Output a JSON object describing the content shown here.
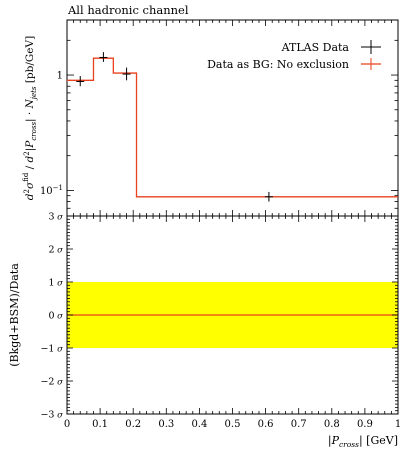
{
  "chart_data": [
    {
      "type": "line",
      "title": "All hadronic channel",
      "xlabel": "|P_cross| [GeV]",
      "ylabel": "d²σ^fid / d²|P_cross|·N_jets [pb/GeV]",
      "yscale": "log",
      "xlim": [
        0,
        1
      ],
      "ylim": [
        0.06,
        3.0
      ],
      "y_ticks": [
        {
          "v": 1,
          "label": "1"
        },
        {
          "v": 0.1,
          "label": "10^{-1}"
        }
      ],
      "legend_position": "top-right",
      "series": [
        {
          "name": "ATLAS Data",
          "style": "points-with-errors",
          "color": "#000000",
          "points": [
            {
              "x": 0.04,
              "y": 0.88,
              "lo": 0.8,
              "hi": 0.98
            },
            {
              "x": 0.11,
              "y": 1.42,
              "lo": 1.3,
              "hi": 1.58
            },
            {
              "x": 0.18,
              "y": 1.02,
              "lo": 0.9,
              "hi": 1.16
            },
            {
              "x": 0.61,
              "y": 0.088,
              "lo": 0.08,
              "hi": 0.097
            }
          ]
        },
        {
          "name": "Data as BG: No exclusion",
          "style": "step",
          "color": "#e8411e",
          "bins": [
            {
              "lo": 0.0,
              "hi": 0.08,
              "y": 0.9
            },
            {
              "lo": 0.08,
              "hi": 0.14,
              "y": 1.4
            },
            {
              "lo": 0.14,
              "hi": 0.21,
              "y": 1.04
            },
            {
              "lo": 0.21,
              "hi": 1.0,
              "y": 0.088
            }
          ]
        }
      ]
    },
    {
      "type": "line",
      "title": "",
      "xlabel": "|P_cross| [GeV]",
      "ylabel": "(Bkgd+BSM)/Data",
      "xlim": [
        0,
        1
      ],
      "ylim": [
        -3,
        3
      ],
      "x_ticks": [
        "0",
        "0.1",
        "0.2",
        "0.3",
        "0.4",
        "0.5",
        "0.6",
        "0.7",
        "0.8",
        "0.9",
        "1"
      ],
      "y_ticks": [
        {
          "v": 3,
          "label": "3 σ"
        },
        {
          "v": 2,
          "label": "2 σ"
        },
        {
          "v": 1,
          "label": "1 σ"
        },
        {
          "v": 0,
          "label": "0 σ"
        },
        {
          "v": -1,
          "label": "-1 σ"
        },
        {
          "v": -2,
          "label": "-2 σ"
        },
        {
          "v": -3,
          "label": "-3 σ"
        }
      ],
      "band": {
        "lo": -1,
        "hi": 1,
        "color": "#ffff00"
      },
      "series": [
        {
          "name": "",
          "style": "line",
          "color": "#e8411e",
          "points": [
            {
              "x": 0,
              "y": 0
            },
            {
              "x": 1,
              "y": 0
            }
          ]
        }
      ]
    }
  ]
}
